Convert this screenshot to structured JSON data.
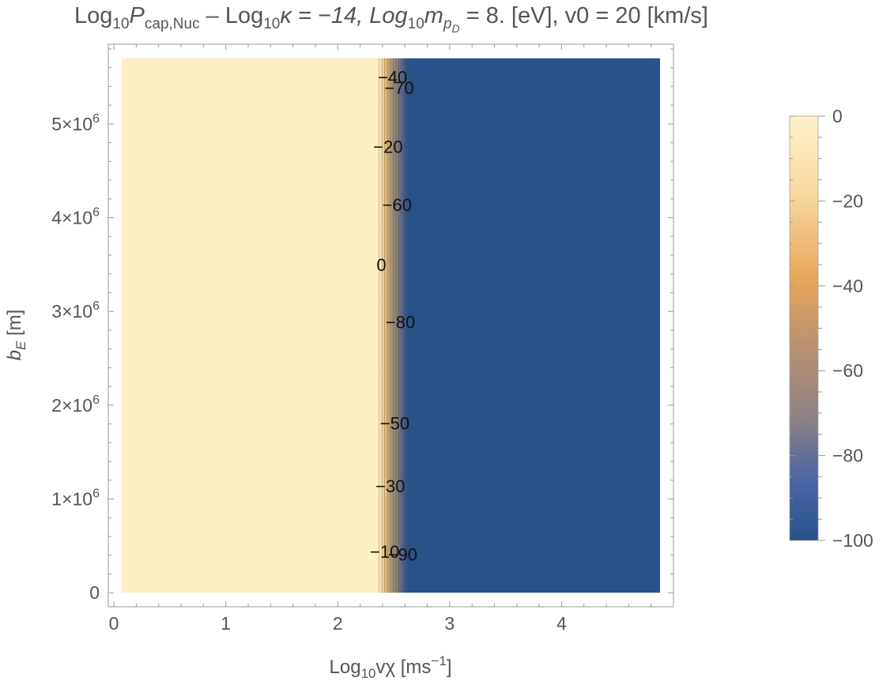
{
  "title": {
    "t1": "Log",
    "t1sub": "10",
    "t2": "P",
    "t2sub": "cap,Nuc",
    "t3": " – Log",
    "t3sub": "10",
    "t4": "κ = −14, Log",
    "t4sub": "10",
    "t5": "m",
    "t5sub": "p",
    "t5subsub": "D",
    "t6": " = 8. [eV], v0 = 20 [km/s]"
  },
  "chart_data": {
    "type": "contour",
    "xlabel": {
      "base": "Log",
      "sub": "10",
      "rest": "vχ [ms",
      "sup": "−1",
      "end": "]"
    },
    "ylabel": {
      "base": "b",
      "sub": "E",
      "rest": " [m]"
    },
    "xlim": [
      -0.05,
      5.0
    ],
    "ylim": [
      -150000,
      5850000
    ],
    "x_ticks": [
      0,
      1,
      2,
      3,
      4
    ],
    "x_tick_labels": [
      "0",
      "1",
      "2",
      "3",
      "4"
    ],
    "y_ticks": [
      0,
      1000000,
      2000000,
      3000000,
      4000000,
      5000000
    ],
    "y_tick_labels": [
      {
        "text": "0"
      },
      {
        "mant": "1",
        "exp": "6"
      },
      {
        "mant": "2",
        "exp": "6"
      },
      {
        "mant": "3",
        "exp": "6"
      },
      {
        "mant": "4",
        "exp": "6"
      },
      {
        "mant": "5",
        "exp": "6"
      }
    ],
    "region": {
      "x_min": 0.07,
      "x_max": 4.88,
      "y_min": 0,
      "y_max": 5700000
    },
    "transition": {
      "x_start": 2.37,
      "x_end": 2.62,
      "value_left": 0,
      "value_right": -100
    },
    "contour_labels": [
      {
        "text": "−40",
        "x": 2.49,
        "y": 5480000
      },
      {
        "text": "−70",
        "x": 2.55,
        "y": 5370000
      },
      {
        "text": "−20",
        "x": 2.45,
        "y": 4740000
      },
      {
        "text": "−60",
        "x": 2.53,
        "y": 4120000
      },
      {
        "text": "0",
        "x": 2.39,
        "y": 3480000
      },
      {
        "text": "−80",
        "x": 2.56,
        "y": 2870000
      },
      {
        "text": "−50",
        "x": 2.51,
        "y": 1790000
      },
      {
        "text": "−30",
        "x": 2.47,
        "y": 1120000
      },
      {
        "text": "−10",
        "x": 2.42,
        "y": 420000
      },
      {
        "text": "−90",
        "x": 2.58,
        "y": 390000
      }
    ],
    "colorbar": {
      "range": [
        -100,
        0
      ],
      "ticks": [
        0,
        -20,
        -40,
        -60,
        -80,
        -100
      ],
      "tick_labels": [
        "0",
        "−20",
        "−40",
        "−60",
        "−80",
        "−100"
      ]
    }
  }
}
